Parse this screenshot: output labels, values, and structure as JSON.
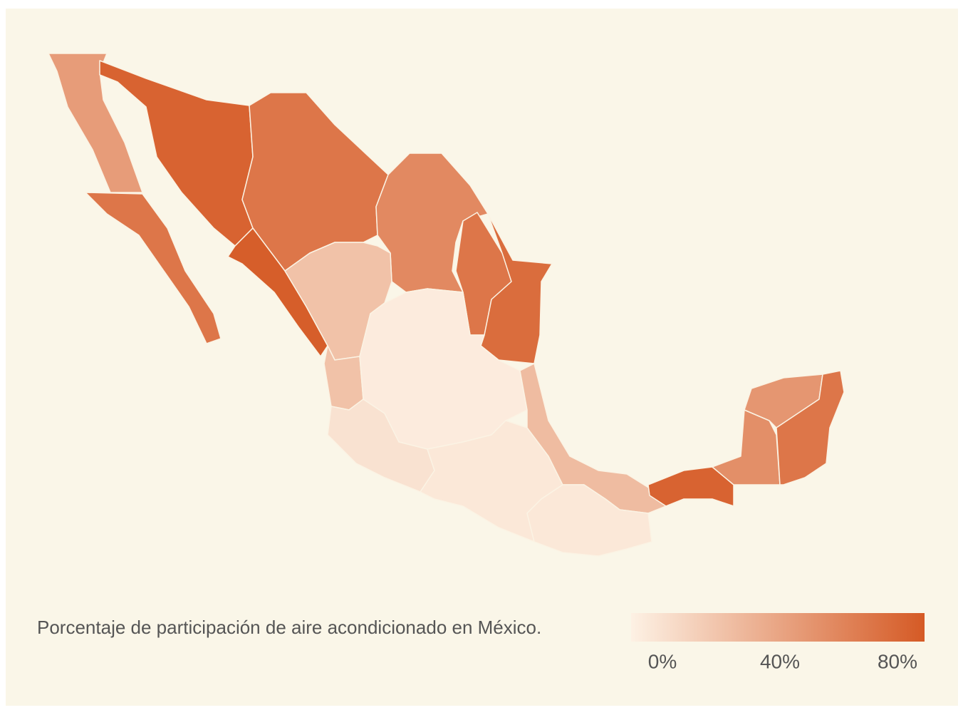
{
  "chart_data": {
    "type": "choropleth",
    "title": "Porcentaje de participación de aire acondicionado en México.",
    "values": [
      45,
      65,
      75,
      65,
      55,
      65,
      70,
      78,
      25,
      25,
      3,
      8,
      5,
      28,
      5,
      75,
      52,
      48,
      65
    ],
    "colors": [
      "#fdf1e4",
      "#d55a25"
    ],
    "cticks": [
      {
        "value": 0,
        "label": "0%"
      },
      {
        "value": 40,
        "label": "40%"
      },
      {
        "value": 80,
        "label": "80%"
      }
    ]
  }
}
